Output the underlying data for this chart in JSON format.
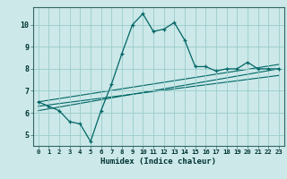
{
  "xlabel": "Humidex (Indice chaleur)",
  "bg_color": "#cce8e8",
  "line_color": "#006666",
  "grid_color": "#99cccc",
  "main_data": {
    "x": [
      0,
      1,
      2,
      3,
      4,
      5,
      6,
      7,
      8,
      9,
      10,
      11,
      12,
      13,
      14,
      15,
      16,
      17,
      18,
      19,
      20,
      21,
      22,
      23
    ],
    "y": [
      6.5,
      6.3,
      6.1,
      5.6,
      5.5,
      4.7,
      6.1,
      7.3,
      8.7,
      10.0,
      10.5,
      9.7,
      9.8,
      10.1,
      9.3,
      8.1,
      8.1,
      7.9,
      8.0,
      8.0,
      8.3,
      8.0,
      8.0,
      8.0
    ]
  },
  "reg_lines": [
    {
      "x": [
        0,
        23
      ],
      "y": [
        6.1,
        8.0
      ]
    },
    {
      "x": [
        0,
        23
      ],
      "y": [
        6.3,
        7.7
      ]
    },
    {
      "x": [
        0,
        23
      ],
      "y": [
        6.5,
        8.2
      ]
    }
  ],
  "ylim": [
    4.5,
    10.8
  ],
  "xlim": [
    -0.5,
    23.5
  ],
  "yticks": [
    5,
    6,
    7,
    8,
    9,
    10
  ],
  "xticks": [
    0,
    1,
    2,
    3,
    4,
    5,
    6,
    7,
    8,
    9,
    10,
    11,
    12,
    13,
    14,
    15,
    16,
    17,
    18,
    19,
    20,
    21,
    22,
    23
  ]
}
